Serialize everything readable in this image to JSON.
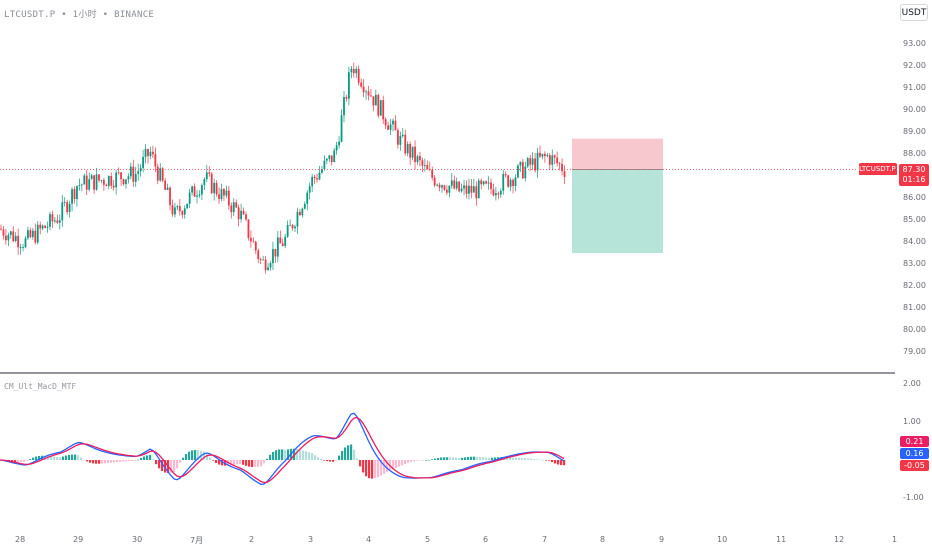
{
  "header": {
    "symbol": "LTCUSDT.P",
    "interval": "1小时",
    "exchange": "BINANCE",
    "currency_button": "USDT"
  },
  "price_axis": {
    "ticks": [
      "93.00",
      "92.00",
      "91.00",
      "90.00",
      "89.00",
      "88.00",
      "87.00",
      "86.00",
      "85.00",
      "84.00",
      "83.00",
      "82.00",
      "81.00",
      "80.00",
      "79.00"
    ],
    "last_price_label": {
      "symbol": "LTCUSDT.P",
      "price": "87.30",
      "countdown": "01:16"
    }
  },
  "indicator": {
    "title": "CM_Ult_MacD_MTF",
    "ticks": [
      "2.00",
      "1.00",
      "-1.00"
    ],
    "value_labels": [
      {
        "value": "0.21",
        "color": "#e91e63"
      },
      {
        "value": "0.16",
        "color": "#2962ff"
      },
      {
        "value": "-0.05",
        "color": "#f23645"
      }
    ]
  },
  "time_axis": {
    "ticks": [
      "28",
      "29",
      "30",
      "7月",
      "2",
      "3",
      "4",
      "5",
      "6",
      "7",
      "8",
      "9",
      "10",
      "11",
      "12",
      "1"
    ]
  },
  "colors": {
    "up": "#089981",
    "down": "#f23645",
    "macd_line": "#2962ff",
    "signal_line": "#e91e63",
    "stop_zone": "#f7c9ce",
    "target_zone": "#b6e4d9",
    "last_price": "#f23645"
  },
  "position_tool": {
    "entry": 87.3,
    "stop": 88.7,
    "target": 83.5
  },
  "chart_data": {
    "type": "candlestick",
    "interval": "1h",
    "price_range": [
      78.5,
      94
    ],
    "indicator_range": [
      -1.5,
      2.2
    ],
    "approx_close_path": [
      {
        "x": "6/27 20:00",
        "y": 84.6
      },
      {
        "x": "6/28 08:00",
        "y": 84.0
      },
      {
        "x": "6/28 16:00",
        "y": 85.2
      },
      {
        "x": "6/29 00:00",
        "y": 86.6
      },
      {
        "x": "6/29 12:00",
        "y": 86.9
      },
      {
        "x": "6/30 00:00",
        "y": 87.1
      },
      {
        "x": "6/30 08:00",
        "y": 88.1
      },
      {
        "x": "6/30 18:00",
        "y": 85.2
      },
      {
        "x": "7/1 04:00",
        "y": 86.9
      },
      {
        "x": "7/1 16:00",
        "y": 85.3
      },
      {
        "x": "7/2 04:00",
        "y": 83.0
      },
      {
        "x": "7/2 14:00",
        "y": 84.1
      },
      {
        "x": "7/3 00:00",
        "y": 86.8
      },
      {
        "x": "7/3 10:00",
        "y": 88.0
      },
      {
        "x": "7/3 18:00",
        "y": 92.1
      },
      {
        "x": "7/4 02:00",
        "y": 90.2
      },
      {
        "x": "7/4 12:00",
        "y": 88.6
      },
      {
        "x": "7/4 22:00",
        "y": 87.0
      },
      {
        "x": "7/5 08:00",
        "y": 86.3
      },
      {
        "x": "7/5 20:00",
        "y": 86.4
      },
      {
        "x": "7/6 08:00",
        "y": 86.9
      },
      {
        "x": "7/6 18:00",
        "y": 87.5
      },
      {
        "x": "7/7 04:00",
        "y": 87.9
      },
      {
        "x": "7/7 08:00",
        "y": 87.3
      }
    ]
  }
}
